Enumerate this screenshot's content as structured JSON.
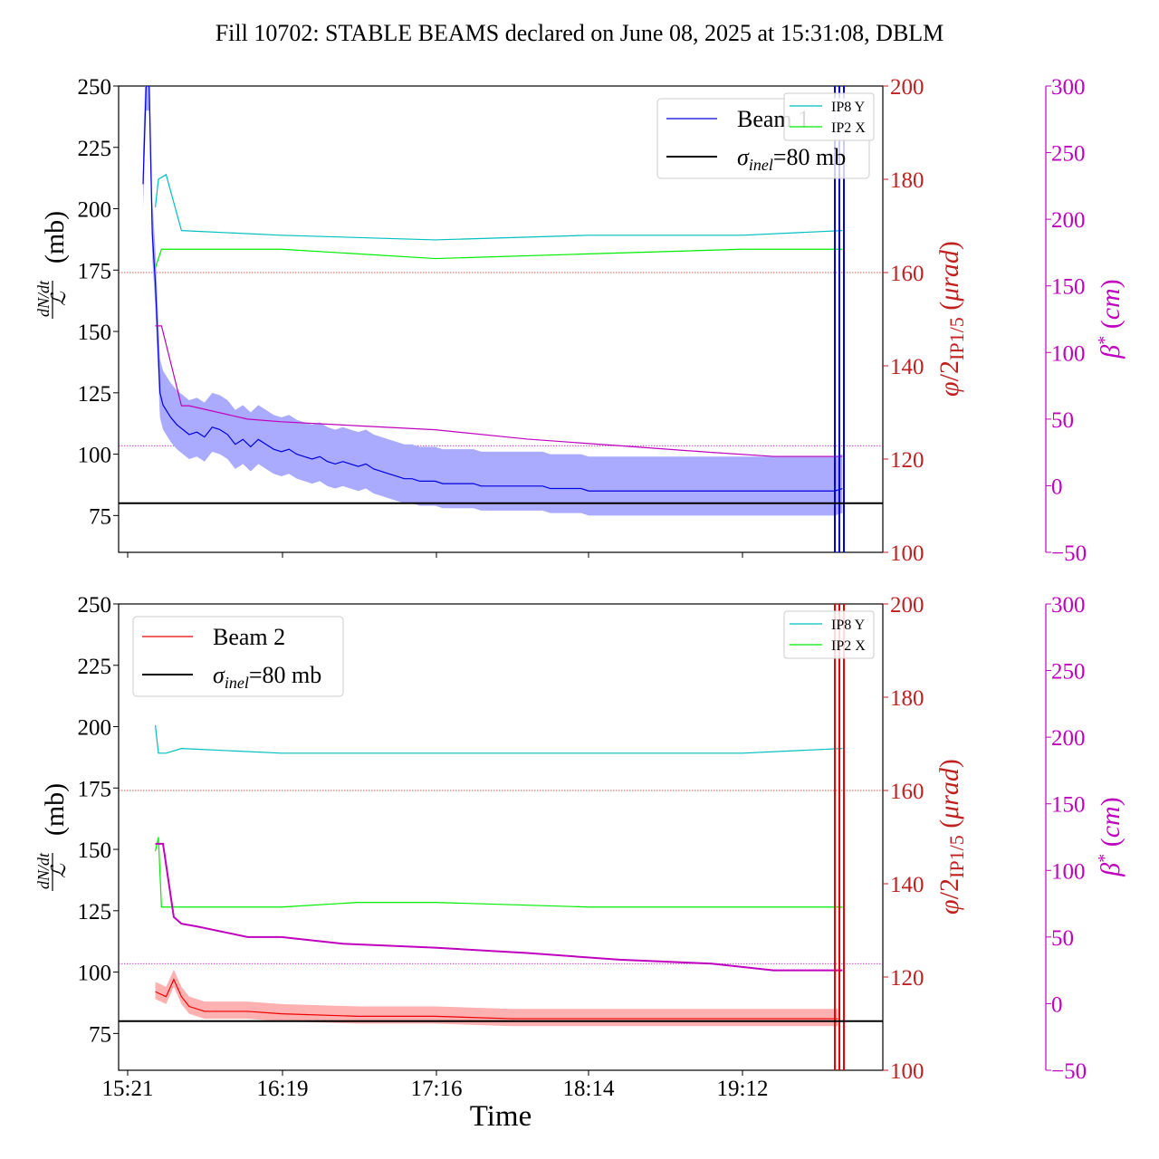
{
  "figure": {
    "title": "Fill 10702: STABLE BEAMS declared on June 08, 2025 at 15:31:08, DBLM",
    "xlabel": "Time"
  },
  "colors": {
    "beam1": "#0000dd",
    "beam1_band": "#aaaaff",
    "beam2": "#ee0000",
    "beam2_band": "#ffb0b0",
    "ip8": "#00bfbf",
    "ip2": "#00ee00",
    "beta": "#bf00bf",
    "phi_axis": "#c02020",
    "sigma": "#000000"
  },
  "chart_data": [
    {
      "type": "line",
      "panel": "top",
      "xlabel": "",
      "ylabel": "dN/dt / ℒ (mb)",
      "ylabel_right": "φ/2IP1/5 (μrad)",
      "ylabel_far_right": "β* (cm)",
      "x_ticks": [
        "15:21",
        "16:19",
        "17:16",
        "18:14",
        "19:12"
      ],
      "x_tick_labels_shown": false,
      "ylim": [
        60,
        250
      ],
      "yticks": [
        75,
        100,
        125,
        150,
        175,
        200,
        225,
        250
      ],
      "ylim_right": [
        100,
        200
      ],
      "yticks_right": [
        100,
        120,
        140,
        160,
        180,
        200
      ],
      "ylim_far_right": [
        -50,
        300
      ],
      "yticks_far_right": [
        -50,
        0,
        50,
        100,
        150,
        200,
        250,
        300
      ],
      "legend": [
        {
          "label": "Beam 1",
          "sub": ""
        },
        {
          "label": "σ",
          "sub": "inel",
          "suffix": "=80 mb"
        }
      ],
      "legend_small": [
        "IP8 Y",
        "IP2 X"
      ],
      "legend_placement": "upper right",
      "sigma_inel_mb": 80,
      "series": [
        {
          "name": "Beam 1",
          "axis": "left",
          "points": [
            [
              0.1,
              210
            ],
            [
              0.12,
              250
            ],
            [
              0.14,
              250
            ],
            [
              0.16,
              190
            ],
            [
              0.18,
              170
            ],
            [
              0.2,
              140
            ],
            [
              0.21,
              125
            ],
            [
              0.23,
              120
            ],
            [
              0.25,
              118
            ],
            [
              0.28,
              115
            ],
            [
              0.32,
              112
            ],
            [
              0.36,
              110
            ],
            [
              0.4,
              108
            ],
            [
              0.45,
              109
            ],
            [
              0.5,
              107
            ],
            [
              0.55,
              111
            ],
            [
              0.6,
              110
            ],
            [
              0.65,
              108
            ],
            [
              0.7,
              104
            ],
            [
              0.75,
              106
            ],
            [
              0.8,
              103
            ],
            [
              0.85,
              106
            ],
            [
              0.9,
              104
            ],
            [
              0.95,
              102
            ],
            [
              1.0,
              101
            ],
            [
              1.05,
              102
            ],
            [
              1.1,
              100
            ],
            [
              1.15,
              99
            ],
            [
              1.2,
              98
            ],
            [
              1.25,
              99
            ],
            [
              1.3,
              97
            ],
            [
              1.35,
              96
            ],
            [
              1.4,
              97
            ],
            [
              1.45,
              96
            ],
            [
              1.5,
              95
            ],
            [
              1.55,
              96
            ],
            [
              1.6,
              94
            ],
            [
              1.65,
              93
            ],
            [
              1.7,
              92
            ],
            [
              1.75,
              91
            ],
            [
              1.8,
              90
            ],
            [
              1.85,
              90
            ],
            [
              1.9,
              89
            ],
            [
              1.95,
              89
            ],
            [
              2.0,
              89
            ],
            [
              2.05,
              88
            ],
            [
              2.1,
              88
            ],
            [
              2.15,
              88
            ],
            [
              2.2,
              88
            ],
            [
              2.25,
              88
            ],
            [
              2.3,
              87
            ],
            [
              2.35,
              87
            ],
            [
              2.4,
              87
            ],
            [
              2.45,
              87
            ],
            [
              2.5,
              87
            ],
            [
              2.55,
              87
            ],
            [
              2.6,
              87
            ],
            [
              2.65,
              87
            ],
            [
              2.7,
              87
            ],
            [
              2.75,
              86
            ],
            [
              2.8,
              86
            ],
            [
              2.85,
              86
            ],
            [
              2.9,
              86
            ],
            [
              2.95,
              86
            ],
            [
              3.0,
              85
            ],
            [
              3.05,
              85
            ],
            [
              3.1,
              85
            ],
            [
              3.15,
              85
            ],
            [
              3.2,
              85
            ],
            [
              3.25,
              85
            ],
            [
              3.3,
              85
            ],
            [
              3.35,
              85
            ],
            [
              3.4,
              85
            ],
            [
              3.45,
              85
            ],
            [
              3.5,
              85
            ],
            [
              3.55,
              85
            ],
            [
              3.6,
              85
            ],
            [
              3.65,
              85
            ],
            [
              3.7,
              85
            ],
            [
              3.75,
              85
            ],
            [
              3.8,
              85
            ],
            [
              3.85,
              85
            ],
            [
              3.9,
              85
            ],
            [
              3.95,
              85
            ],
            [
              4.0,
              85
            ],
            [
              4.05,
              85
            ],
            [
              4.1,
              85
            ],
            [
              4.15,
              85
            ],
            [
              4.2,
              85
            ],
            [
              4.25,
              85
            ],
            [
              4.3,
              85
            ],
            [
              4.35,
              85
            ],
            [
              4.4,
              85
            ],
            [
              4.45,
              85
            ],
            [
              4.5,
              85
            ],
            [
              4.55,
              85
            ],
            [
              4.6,
              85
            ],
            [
              4.65,
              86
            ]
          ]
        },
        {
          "name": "IP8 Y",
          "axis": "right",
          "points": [
            [
              0.18,
              174
            ],
            [
              0.2,
              180
            ],
            [
              0.25,
              181
            ],
            [
              0.35,
              169
            ],
            [
              1.0,
              168
            ],
            [
              2.0,
              167
            ],
            [
              3.0,
              168
            ],
            [
              4.0,
              168
            ],
            [
              4.65,
              169
            ]
          ]
        },
        {
          "name": "IP2 X",
          "axis": "right",
          "points": [
            [
              0.18,
              161
            ],
            [
              0.22,
              165
            ],
            [
              0.35,
              165
            ],
            [
              1.0,
              165
            ],
            [
              1.5,
              164
            ],
            [
              2.0,
              163
            ],
            [
              3.0,
              164
            ],
            [
              4.0,
              165
            ],
            [
              4.65,
              165
            ]
          ]
        },
        {
          "name": "β*",
          "axis": "far_right",
          "points": [
            [
              0.18,
              120
            ],
            [
              0.22,
              120
            ],
            [
              0.35,
              60
            ],
            [
              0.4,
              60
            ],
            [
              0.78,
              50
            ],
            [
              1.0,
              48
            ],
            [
              1.5,
              45
            ],
            [
              2.0,
              42
            ],
            [
              2.6,
              35
            ],
            [
              3.2,
              30
            ],
            [
              3.8,
              25
            ],
            [
              4.2,
              22
            ],
            [
              4.65,
              22
            ]
          ]
        }
      ]
    },
    {
      "type": "line",
      "panel": "bottom",
      "xlabel": "Time",
      "ylabel": "dN/dt / ℒ (mb)",
      "ylabel_right": "φ/2IP1/5 (μrad)",
      "ylabel_far_right": "β* (cm)",
      "x_ticks": [
        "15:21",
        "16:19",
        "17:16",
        "18:14",
        "19:12"
      ],
      "x_tick_labels_shown": true,
      "ylim": [
        60,
        250
      ],
      "yticks": [
        75,
        100,
        125,
        150,
        175,
        200,
        225,
        250
      ],
      "ylim_right": [
        100,
        200
      ],
      "yticks_right": [
        100,
        120,
        140,
        160,
        180,
        200
      ],
      "ylim_far_right": [
        -50,
        300
      ],
      "yticks_far_right": [
        -50,
        0,
        50,
        100,
        150,
        200,
        250,
        300
      ],
      "legend": [
        {
          "label": "Beam 2",
          "sub": ""
        },
        {
          "label": "σ",
          "sub": "inel",
          "suffix": "=80 mb"
        }
      ],
      "legend_small": [
        "IP8 Y",
        "IP2 X"
      ],
      "legend_placement": "upper left",
      "sigma_inel_mb": 80,
      "series": [
        {
          "name": "Beam 2",
          "axis": "left",
          "points": [
            [
              0.18,
              92
            ],
            [
              0.25,
              90
            ],
            [
              0.3,
              97
            ],
            [
              0.35,
              90
            ],
            [
              0.4,
              86
            ],
            [
              0.5,
              84
            ],
            [
              0.78,
              84
            ],
            [
              1.0,
              83
            ],
            [
              1.5,
              82
            ],
            [
              2.0,
              82
            ],
            [
              2.5,
              81
            ],
            [
              3.0,
              81
            ],
            [
              3.5,
              81
            ],
            [
              4.0,
              81
            ],
            [
              4.5,
              81
            ],
            [
              4.62,
              81
            ]
          ]
        },
        {
          "name": "IP8 Y",
          "axis": "right",
          "points": [
            [
              0.18,
              174
            ],
            [
              0.2,
              168
            ],
            [
              0.25,
              168
            ],
            [
              0.35,
              169
            ],
            [
              1.0,
              168
            ],
            [
              2.0,
              168
            ],
            [
              3.0,
              168
            ],
            [
              4.0,
              168
            ],
            [
              4.65,
              169
            ]
          ]
        },
        {
          "name": "IP2 X",
          "axis": "right",
          "points": [
            [
              0.18,
              147
            ],
            [
              0.2,
              150
            ],
            [
              0.22,
              135
            ],
            [
              0.35,
              135
            ],
            [
              1.0,
              135
            ],
            [
              1.5,
              136
            ],
            [
              2.0,
              136
            ],
            [
              3.0,
              135
            ],
            [
              4.0,
              135
            ],
            [
              4.65,
              135
            ]
          ]
        },
        {
          "name": "β*",
          "axis": "far_right",
          "points": [
            [
              0.18,
              120
            ],
            [
              0.23,
              120
            ],
            [
              0.3,
              65
            ],
            [
              0.35,
              60
            ],
            [
              0.45,
              58
            ],
            [
              0.78,
              50
            ],
            [
              1.0,
              50
            ],
            [
              1.4,
              45
            ],
            [
              2.0,
              42
            ],
            [
              2.6,
              38
            ],
            [
              3.2,
              33
            ],
            [
              3.8,
              30
            ],
            [
              4.2,
              25
            ],
            [
              4.65,
              25
            ]
          ]
        }
      ]
    }
  ]
}
